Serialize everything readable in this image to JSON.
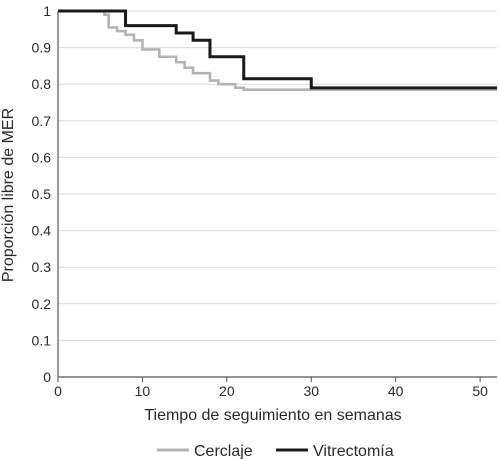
{
  "chart_data": {
    "type": "line",
    "step": "post",
    "xlabel": "Tiempo de seguimiento en semanas",
    "ylabel": "Proporción libre de MER",
    "xlim": [
      0,
      52
    ],
    "ylim": [
      0,
      1
    ],
    "xticks": [
      0,
      10,
      20,
      30,
      40,
      50
    ],
    "xtick_labels": [
      "0",
      "10",
      "20",
      "30",
      "40",
      "50"
    ],
    "yticks": [
      0,
      0.1,
      0.2,
      0.3,
      0.4,
      0.5,
      0.6,
      0.7,
      0.8,
      0.9,
      1
    ],
    "ytick_labels": [
      "0",
      "0.1",
      "0.2",
      "0.3",
      "0.4",
      "0.5",
      "0.6",
      "0.7",
      "0.8",
      "0.9",
      "1"
    ],
    "grid": true,
    "legend_position": "bottom",
    "series": [
      {
        "name": "Cerclaje",
        "color": "#b4b4b4",
        "x": [
          0,
          5.5,
          6,
          7,
          8,
          9,
          10,
          12,
          14,
          15,
          16,
          18,
          19,
          21,
          22,
          30,
          52
        ],
        "y": [
          1.0,
          0.99,
          0.955,
          0.945,
          0.935,
          0.92,
          0.895,
          0.875,
          0.86,
          0.845,
          0.83,
          0.81,
          0.8,
          0.79,
          0.785,
          0.785,
          0.785
        ]
      },
      {
        "name": "Vitrectomía",
        "color": "#1a1a1a",
        "x": [
          0,
          8,
          14,
          16,
          18,
          22,
          30,
          52
        ],
        "y": [
          1.0,
          0.96,
          0.94,
          0.92,
          0.875,
          0.815,
          0.79,
          0.79
        ]
      }
    ]
  }
}
